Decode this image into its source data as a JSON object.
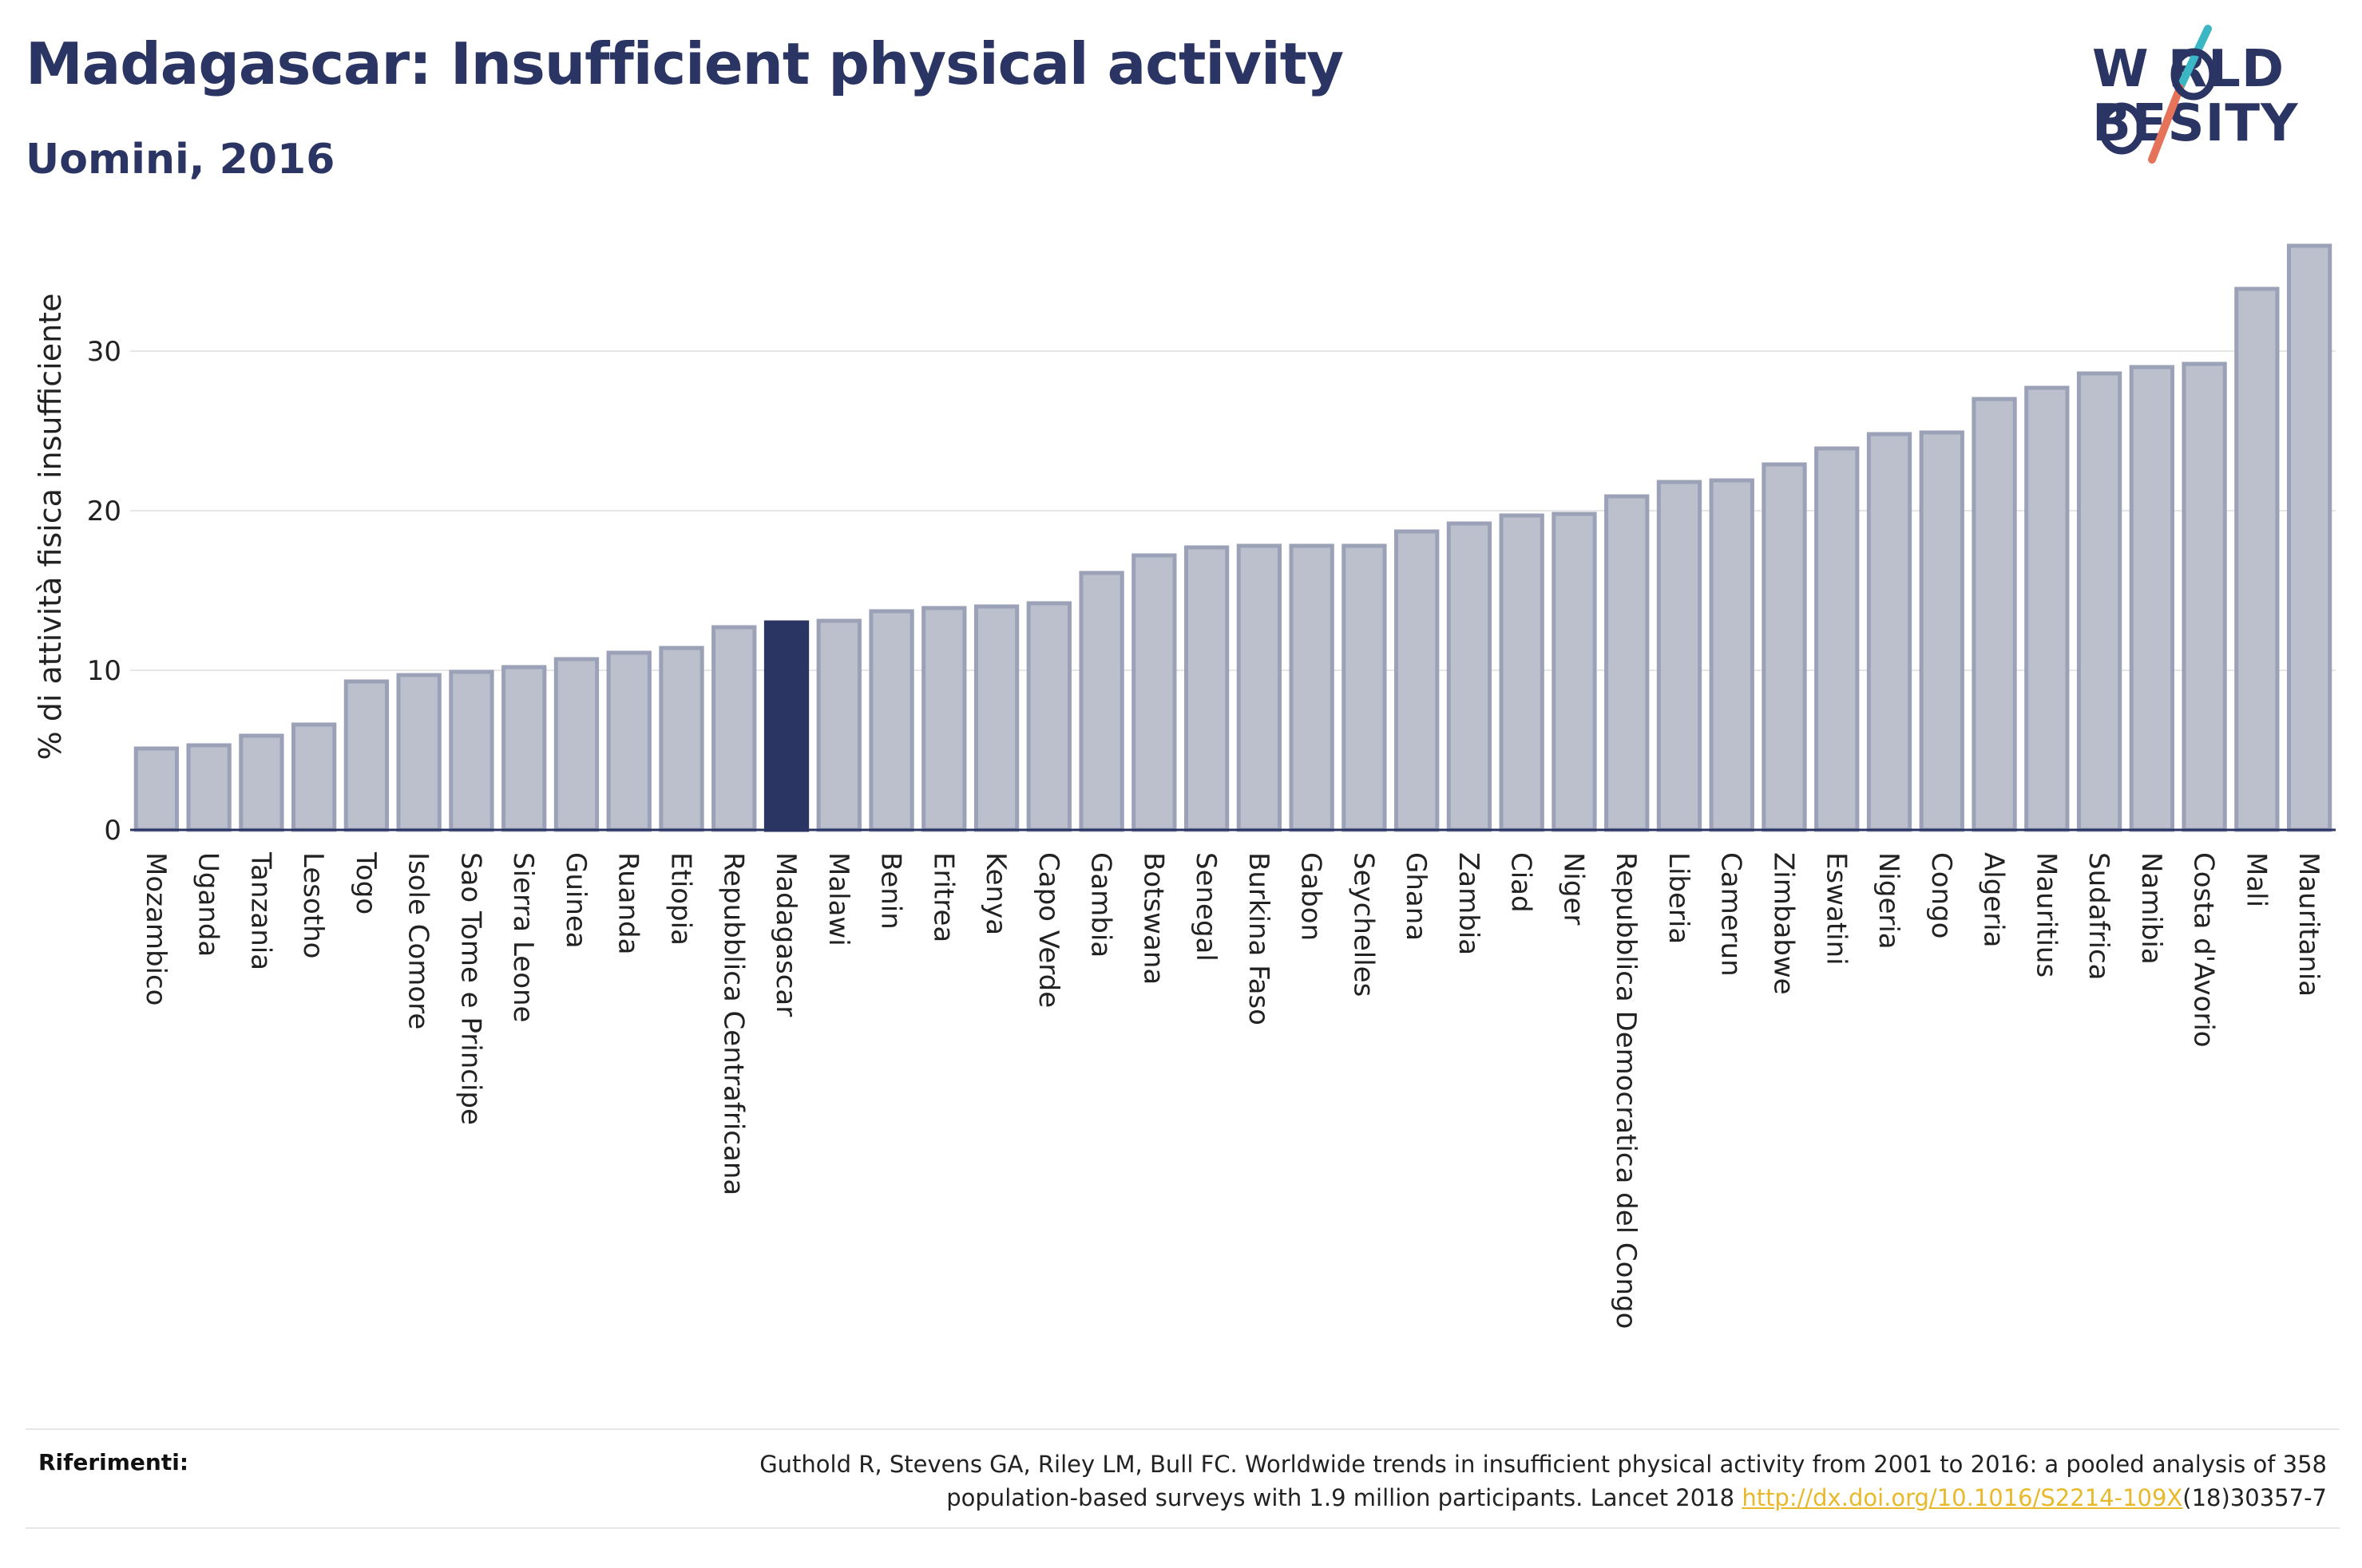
{
  "header": {
    "title": "Madagascar: Insufficient physical activity",
    "subtitle": "Uomini, 2016"
  },
  "logo": {
    "line1": "W RLD",
    "line2": "BESITY",
    "slash_colors": [
      "#3bb6c4",
      "#e5735a"
    ]
  },
  "colors": {
    "bar_default": "#bcc0cd",
    "bar_border": "#9ba1b7",
    "bar_highlight": "#2b3563",
    "grid": "#e6e6e6",
    "axis_line": "#2b3563",
    "link": "#e8b92b"
  },
  "chart_data": {
    "type": "bar",
    "title": "Madagascar: Insufficient physical activity",
    "subtitle": "Uomini, 2016",
    "xlabel": "",
    "ylabel": "% di attività fisica insufficiente",
    "ylim": [
      0,
      37
    ],
    "yticks": [
      0,
      10,
      20,
      30
    ],
    "grid": true,
    "highlight": "Madagascar",
    "categories": [
      "Mozambico",
      "Uganda",
      "Tanzania",
      "Lesotho",
      "Togo",
      "Isole Comore",
      "Sao Tome e Principe",
      "Sierra Leone",
      "Guinea",
      "Ruanda",
      "Etiopia",
      "Repubblica Centrafricana",
      "Madagascar",
      "Malawi",
      "Benin",
      "Eritrea",
      "Kenya",
      "Capo Verde",
      "Gambia",
      "Botswana",
      "Senegal",
      "Burkina Faso",
      "Gabon",
      "Seychelles",
      "Ghana",
      "Zambia",
      "Ciad",
      "Niger",
      "Repubblica Democratica del Congo",
      "Liberia",
      "Camerun",
      "Zimbabwe",
      "Eswatini",
      "Nigeria",
      "Congo",
      "Algeria",
      "Mauritius",
      "Sudafrica",
      "Namibia",
      "Costa d'Avorio",
      "Mali",
      "Mauritania"
    ],
    "values": [
      5.1,
      5.3,
      5.9,
      6.6,
      9.3,
      9.7,
      9.9,
      10.2,
      10.7,
      11.1,
      11.4,
      12.7,
      13.0,
      13.1,
      13.7,
      13.9,
      14.0,
      14.2,
      16.1,
      17.2,
      17.7,
      17.8,
      17.8,
      17.8,
      18.7,
      19.2,
      19.7,
      19.8,
      20.9,
      21.8,
      21.9,
      22.9,
      23.9,
      24.8,
      24.9,
      27.0,
      27.7,
      28.6,
      29.0,
      29.2,
      33.9,
      36.6
    ]
  },
  "references": {
    "label": "Riferimenti:",
    "line1": "Guthold R, Stevens GA, Riley LM, Bull FC. Worldwide trends in insufficient physical activity from 2001 to 2016: a pooled analysis of 358",
    "line2_prefix": "population-based surveys with 1.9 million participants. Lancet 2018 ",
    "link_text": "http://dx.doi.org/10.1016/S2214-109X",
    "line2_suffix": "(18)30357-7"
  }
}
